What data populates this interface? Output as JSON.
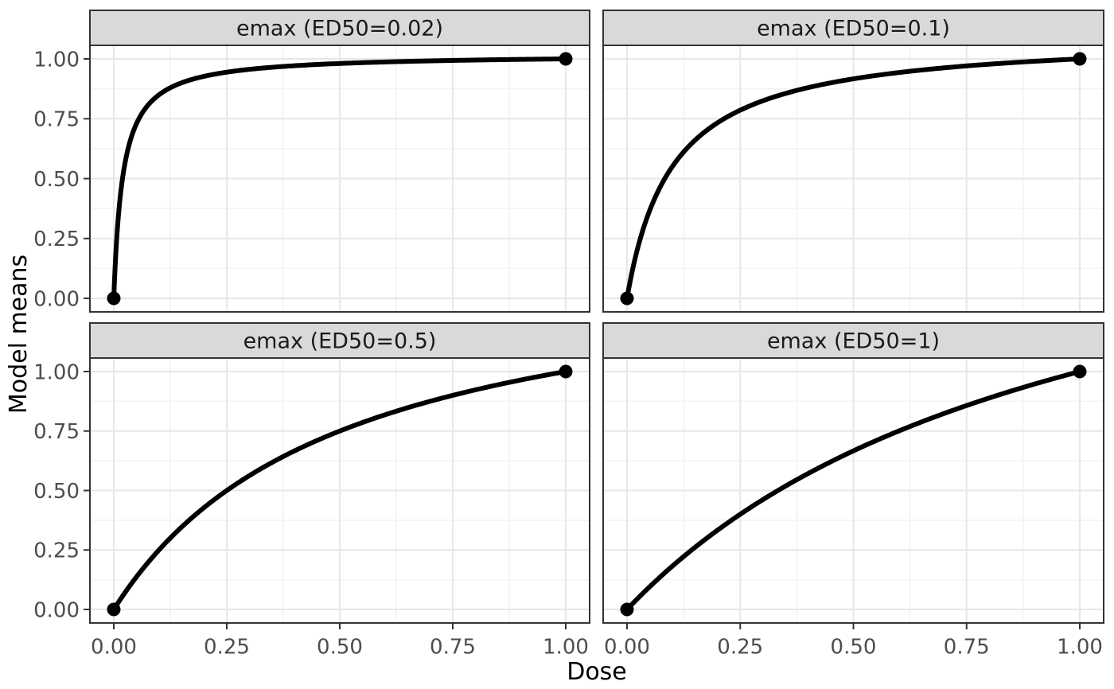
{
  "chart_data": {
    "type": "line",
    "title": "",
    "xlabel": "Dose",
    "ylabel": "Model means",
    "x_range": [
      0,
      1
    ],
    "y_range": [
      0,
      1
    ],
    "x_ticks": {
      "values": [
        0,
        0.25,
        0.5,
        0.75,
        1
      ],
      "labels": [
        "0.00",
        "0.25",
        "0.50",
        "0.75",
        "1.00"
      ]
    },
    "y_ticks": {
      "values": [
        0,
        0.25,
        0.5,
        0.75,
        1
      ],
      "labels": [
        "0.00",
        "0.25",
        "0.50",
        "0.75",
        "1.00"
      ]
    },
    "minor_ticks": [
      0.125,
      0.375,
      0.625,
      0.875
    ],
    "grid": "major and minor gridlines shown, white panel background, no legend",
    "layout": "2x2 facet grid with gray strip titles above each panel",
    "model_formula": "y = x*(1+ED50)/(ED50+x)  (emax curve normalized: y(0)=0, y(1)=1)",
    "facets": [
      {
        "title": "emax (ED50=0.02)",
        "ed50": 0.02,
        "endpoints": [
          [
            0,
            0
          ],
          [
            1,
            1
          ]
        ],
        "key_values": {
          "x": [
            0,
            0.25,
            0.5,
            0.75,
            1
          ],
          "y": [
            0,
            0.944,
            0.981,
            0.994,
            1
          ]
        }
      },
      {
        "title": "emax (ED50=0.1)",
        "ed50": 0.1,
        "endpoints": [
          [
            0,
            0
          ],
          [
            1,
            1
          ]
        ],
        "key_values": {
          "x": [
            0,
            0.25,
            0.5,
            0.75,
            1
          ],
          "y": [
            0,
            0.786,
            0.917,
            0.971,
            1
          ]
        }
      },
      {
        "title": "emax (ED50=0.5)",
        "ed50": 0.5,
        "endpoints": [
          [
            0,
            0
          ],
          [
            1,
            1
          ]
        ],
        "key_values": {
          "x": [
            0,
            0.25,
            0.5,
            0.75,
            1
          ],
          "y": [
            0,
            0.5,
            0.75,
            0.9,
            1
          ]
        }
      },
      {
        "title": "emax (ED50=1)",
        "ed50": 1,
        "endpoints": [
          [
            0,
            0
          ],
          [
            1,
            1
          ]
        ],
        "key_values": {
          "x": [
            0,
            0.25,
            0.5,
            0.75,
            1
          ],
          "y": [
            0,
            0.4,
            0.667,
            0.857,
            1
          ]
        }
      }
    ],
    "style": {
      "line_color": "#000000",
      "point_color": "#000000",
      "strip_fill": "#d9d9d9",
      "strip_border": "#333333",
      "strip_text_color": "#1a1a1a",
      "panel_bg": "#ffffff",
      "panel_border": "#333333",
      "grid_major_color": "#e7e7e7",
      "grid_minor_color": "#f2f2f2",
      "tick_label_color": "#4d4d4d",
      "tick_mark_color": "#333333",
      "axis_title_color": "#000000",
      "background": "#ffffff"
    }
  }
}
